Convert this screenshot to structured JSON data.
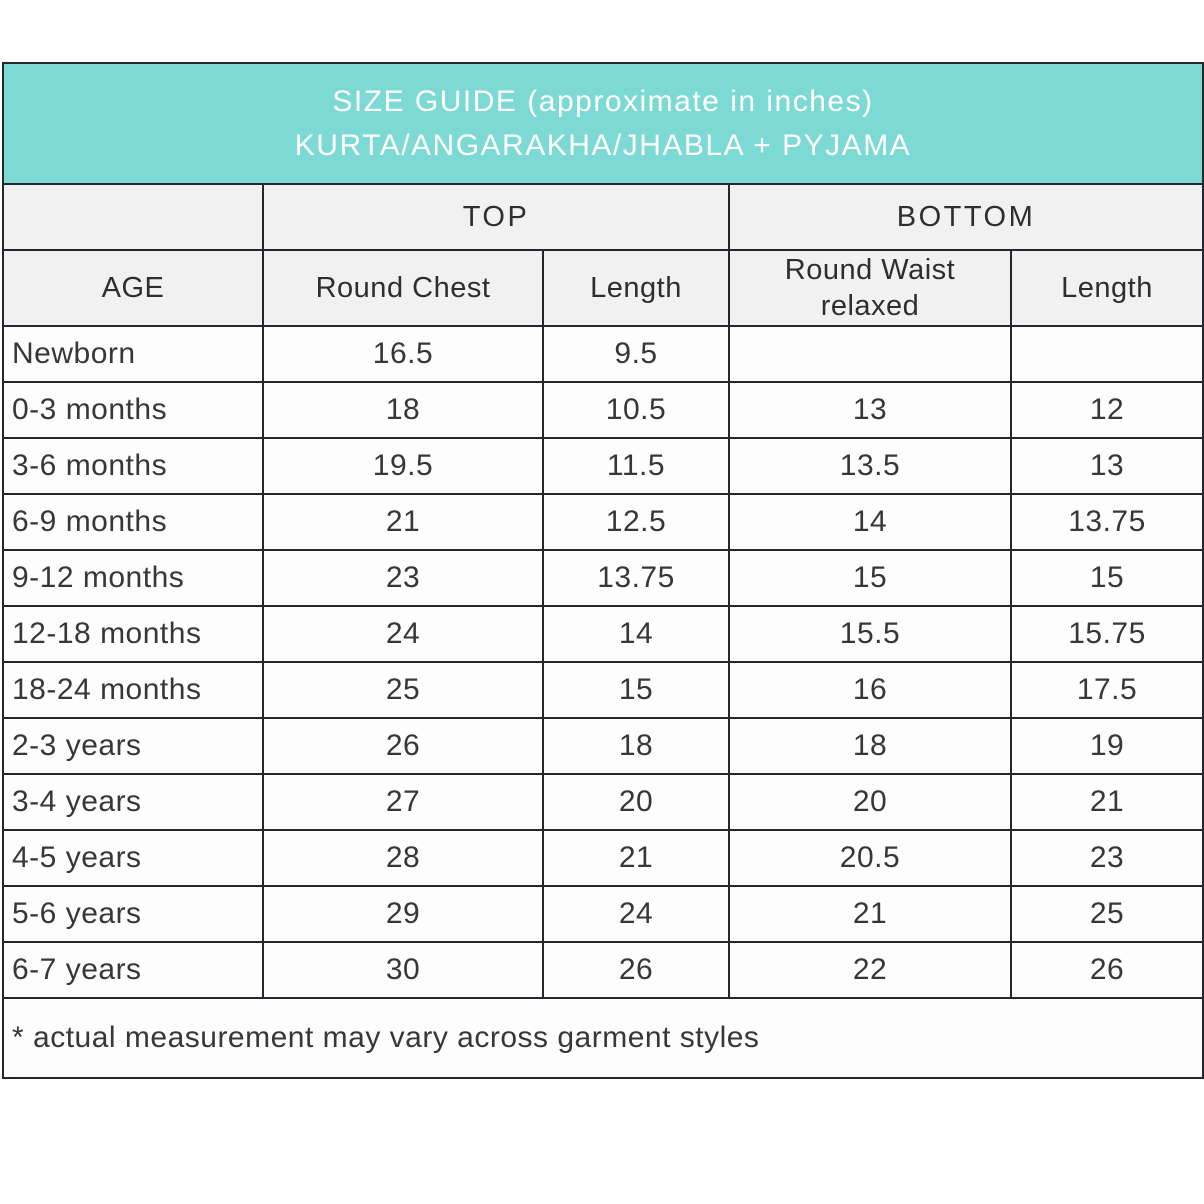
{
  "banner": {
    "line1": "SIZE GUIDE (approximate in inches)",
    "line2": "KURTA/ANGARAKHA/JHABLA + PYJAMA"
  },
  "group_headers": [
    {
      "label": "TOP",
      "span": 2
    },
    {
      "label": "BOTTOM",
      "span": 2
    }
  ],
  "columns": [
    "AGE",
    "Round Chest",
    "Length",
    "Round Waist relaxed",
    "Length"
  ],
  "rows": [
    {
      "age": "Newborn",
      "values": [
        "16.5",
        "9.5",
        "",
        ""
      ]
    },
    {
      "age": "0-3 months",
      "values": [
        "18",
        "10.5",
        "13",
        "12"
      ]
    },
    {
      "age": "3-6 months",
      "values": [
        "19.5",
        "11.5",
        "13.5",
        "13"
      ]
    },
    {
      "age": "6-9 months",
      "values": [
        "21",
        "12.5",
        "14",
        "13.75"
      ]
    },
    {
      "age": "9-12 months",
      "values": [
        "23",
        "13.75",
        "15",
        "15"
      ]
    },
    {
      "age": "12-18 months",
      "values": [
        "24",
        "14",
        "15.5",
        "15.75"
      ]
    },
    {
      "age": "18-24 months",
      "values": [
        "25",
        "15",
        "16",
        "17.5"
      ]
    },
    {
      "age": "2-3 years",
      "values": [
        "26",
        "18",
        "18",
        "19"
      ]
    },
    {
      "age": "3-4 years",
      "values": [
        "27",
        "20",
        "20",
        "21"
      ]
    },
    {
      "age": "4-5 years",
      "values": [
        "28",
        "21",
        "20.5",
        "23"
      ]
    },
    {
      "age": "5-6 years",
      "values": [
        "29",
        "24",
        "21",
        "25"
      ]
    },
    {
      "age": "6-7 years",
      "values": [
        "30",
        "26",
        "22",
        "26"
      ]
    }
  ],
  "footnote": "* actual measurement may vary across garment styles",
  "colors": {
    "banner_bg": "#7cd9d3",
    "banner_text": "#ffffff",
    "header_bg": "#f1f1f2",
    "cell_bg": "#fdfdfe",
    "border": "#26262c",
    "text": "#373737"
  },
  "chart_data": {
    "type": "table",
    "title": "SIZE GUIDE (approximate in inches) KURTA/ANGARAKHA/JHABLA + PYJAMA",
    "column_groups": [
      {
        "label": "",
        "span": 1
      },
      {
        "label": "TOP",
        "span": 2
      },
      {
        "label": "BOTTOM",
        "span": 2
      }
    ],
    "columns": [
      "AGE",
      "Round Chest",
      "Length",
      "Round Waist relaxed",
      "Length"
    ],
    "rows": [
      [
        "Newborn",
        16.5,
        9.5,
        null,
        null
      ],
      [
        "0-3 months",
        18,
        10.5,
        13,
        12
      ],
      [
        "3-6 months",
        19.5,
        11.5,
        13.5,
        13
      ],
      [
        "6-9 months",
        21,
        12.5,
        14,
        13.75
      ],
      [
        "9-12 months",
        23,
        13.75,
        15,
        15
      ],
      [
        "12-18 months",
        24,
        14,
        15.5,
        15.75
      ],
      [
        "18-24 months",
        25,
        15,
        16,
        17.5
      ],
      [
        "2-3 years",
        26,
        18,
        18,
        19
      ],
      [
        "3-4 years",
        27,
        20,
        20,
        21
      ],
      [
        "4-5 years",
        28,
        21,
        20.5,
        23
      ],
      [
        "5-6 years",
        29,
        24,
        21,
        25
      ],
      [
        "6-7 years",
        30,
        26,
        22,
        26
      ]
    ],
    "footnote": "* actual measurement may vary across garment styles",
    "units": "inches"
  }
}
